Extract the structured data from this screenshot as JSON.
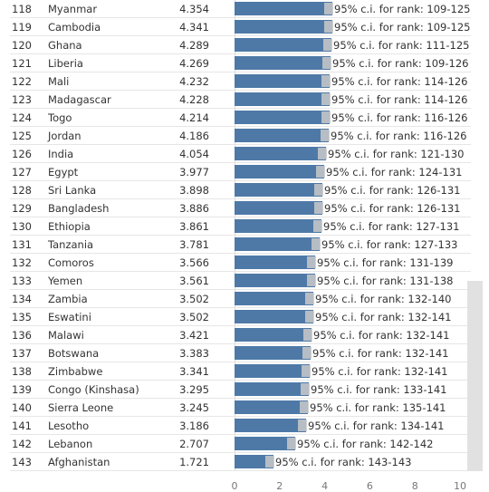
{
  "chart_data": {
    "type": "bar",
    "orientation": "horizontal",
    "columns": [
      "rank",
      "country",
      "score"
    ],
    "rows": [
      {
        "rank": "118",
        "country": "Myanmar",
        "score": 4.354,
        "score_label": "4.354",
        "ci": "95% c.i. for rank: 109-125"
      },
      {
        "rank": "119",
        "country": "Cambodia",
        "score": 4.341,
        "score_label": "4.341",
        "ci": "95% c.i. for rank: 109-125"
      },
      {
        "rank": "120",
        "country": "Ghana",
        "score": 4.289,
        "score_label": "4.289",
        "ci": "95% c.i. for rank: 111-125"
      },
      {
        "rank": "121",
        "country": "Liberia",
        "score": 4.269,
        "score_label": "4.269",
        "ci": "95% c.i. for rank: 109-126"
      },
      {
        "rank": "122",
        "country": "Mali",
        "score": 4.232,
        "score_label": "4.232",
        "ci": "95% c.i. for rank: 114-126"
      },
      {
        "rank": "123",
        "country": "Madagascar",
        "score": 4.228,
        "score_label": "4.228",
        "ci": "95% c.i. for rank: 114-126"
      },
      {
        "rank": "124",
        "country": "Togo",
        "score": 4.214,
        "score_label": "4.214",
        "ci": "95% c.i. for rank: 116-126"
      },
      {
        "rank": "125",
        "country": "Jordan",
        "score": 4.186,
        "score_label": "4.186",
        "ci": "95% c.i. for rank: 116-126"
      },
      {
        "rank": "126",
        "country": "India",
        "score": 4.054,
        "score_label": "4.054",
        "ci": "95% c.i. for rank: 121-130"
      },
      {
        "rank": "127",
        "country": "Egypt",
        "score": 3.977,
        "score_label": "3.977",
        "ci": "95% c.i. for rank: 124-131"
      },
      {
        "rank": "128",
        "country": "Sri Lanka",
        "score": 3.898,
        "score_label": "3.898",
        "ci": "95% c.i. for rank: 126-131"
      },
      {
        "rank": "129",
        "country": "Bangladesh",
        "score": 3.886,
        "score_label": "3.886",
        "ci": "95% c.i. for rank: 126-131"
      },
      {
        "rank": "130",
        "country": "Ethiopia",
        "score": 3.861,
        "score_label": "3.861",
        "ci": "95% c.i. for rank: 127-131"
      },
      {
        "rank": "131",
        "country": "Tanzania",
        "score": 3.781,
        "score_label": "3.781",
        "ci": "95% c.i. for rank: 127-133"
      },
      {
        "rank": "132",
        "country": "Comoros",
        "score": 3.566,
        "score_label": "3.566",
        "ci": "95% c.i. for rank: 131-139"
      },
      {
        "rank": "133",
        "country": "Yemen",
        "score": 3.561,
        "score_label": "3.561",
        "ci": "95% c.i. for rank: 131-138"
      },
      {
        "rank": "134",
        "country": "Zambia",
        "score": 3.502,
        "score_label": "3.502",
        "ci": "95% c.i. for rank: 132-140"
      },
      {
        "rank": "135",
        "country": "Eswatini",
        "score": 3.502,
        "score_label": "3.502",
        "ci": "95% c.i. for rank: 132-141"
      },
      {
        "rank": "136",
        "country": "Malawi",
        "score": 3.421,
        "score_label": "3.421",
        "ci": "95% c.i. for rank: 132-141"
      },
      {
        "rank": "137",
        "country": "Botswana",
        "score": 3.383,
        "score_label": "3.383",
        "ci": "95% c.i. for rank: 132-141"
      },
      {
        "rank": "138",
        "country": "Zimbabwe",
        "score": 3.341,
        "score_label": "3.341",
        "ci": "95% c.i. for rank: 132-141"
      },
      {
        "rank": "139",
        "country": "Congo (Kinshasa)",
        "score": 3.295,
        "score_label": "3.295",
        "ci": "95% c.i. for rank: 133-141"
      },
      {
        "rank": "140",
        "country": "Sierra Leone",
        "score": 3.245,
        "score_label": "3.245",
        "ci": "95% c.i. for rank: 135-141"
      },
      {
        "rank": "141",
        "country": "Lesotho",
        "score": 3.186,
        "score_label": "3.186",
        "ci": "95% c.i. for rank: 134-141"
      },
      {
        "rank": "142",
        "country": "Lebanon",
        "score": 2.707,
        "score_label": "2.707",
        "ci": "95% c.i. for rank: 142-142"
      },
      {
        "rank": "143",
        "country": "Afghanistan",
        "score": 1.721,
        "score_label": "1.721",
        "ci": "95% c.i. for rank: 143-143"
      }
    ],
    "xlim": [
      0,
      10
    ],
    "x_ticks": [
      {
        "value": 0,
        "label": "0"
      },
      {
        "value": 2,
        "label": "2"
      },
      {
        "value": 4,
        "label": "4"
      },
      {
        "value": 6,
        "label": "6"
      },
      {
        "value": 8,
        "label": "8"
      },
      {
        "value": 10,
        "label": "10"
      }
    ],
    "bar_color": "#4e79a7",
    "ci_color": "#c9c9c9",
    "grid": false
  }
}
